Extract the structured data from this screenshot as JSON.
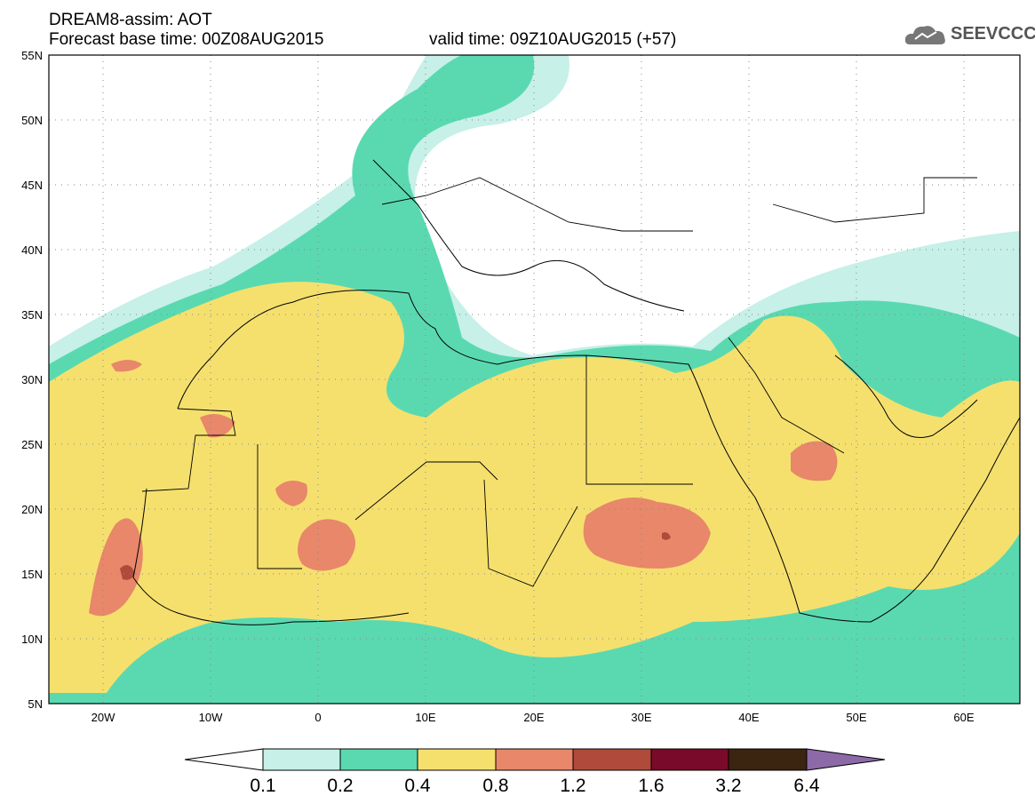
{
  "header": {
    "product": "DREAM8-assim: AOT",
    "base_time": "Forecast base time: 00Z08AUG2015",
    "valid_time": "valid time: 09Z10AUG2015 (+57)"
  },
  "logo": {
    "text": "SEEVCCC",
    "icon": "cloud-icon"
  },
  "map": {
    "lon_range": [
      -25,
      65
    ],
    "lat_range": [
      5,
      55
    ],
    "lat_ticks": [
      "55N",
      "50N",
      "45N",
      "40N",
      "35N",
      "30N",
      "25N",
      "20N",
      "15N",
      "10N",
      "5N"
    ],
    "lon_ticks": [
      "20W",
      "10W",
      "0",
      "10E",
      "20E",
      "30E",
      "40E",
      "50E",
      "60E"
    ],
    "grid": "dotted"
  },
  "colorbar": {
    "labels": [
      "0.1",
      "0.2",
      "0.4",
      "0.8",
      "1.2",
      "1.6",
      "3.2",
      "6.4"
    ],
    "colors": [
      "#ffffff",
      "#c6f0e8",
      "#5ad9b0",
      "#f5e06e",
      "#e8876a",
      "#b04a3a",
      "#7a0a2a",
      "#3b2410",
      "#8c6aa8"
    ]
  },
  "chart_data": {
    "type": "heatmap",
    "variable": "AOT",
    "levels": [
      0.1,
      0.2,
      0.4,
      0.8,
      1.2,
      1.6,
      3.2,
      6.4
    ],
    "xlim": [
      "25W",
      "65E"
    ],
    "ylim": [
      "5N",
      "55N"
    ]
  }
}
